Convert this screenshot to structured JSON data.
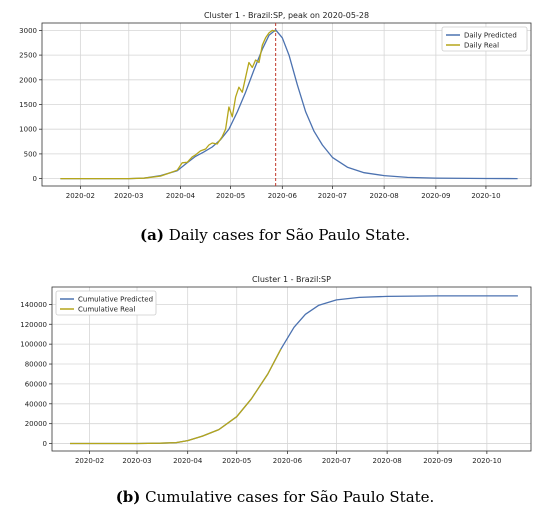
{
  "chart_data": [
    {
      "type": "line",
      "title": "Cluster 1 - Brazil:SP, peak on 2020-05-28",
      "caption_label": "(a)",
      "caption_text": " Daily cases for São Paulo State.",
      "xlabel": "",
      "ylabel": "",
      "x_ticks": [
        "2020-02",
        "2020-03",
        "2020-04",
        "2020-05",
        "2020-06",
        "2020-07",
        "2020-08",
        "2020-09",
        "2020-10"
      ],
      "x_range": [
        "2020-01-09",
        "2020-10-28"
      ],
      "ylim": [
        -150,
        3150
      ],
      "y_ticks": [
        0,
        500,
        1000,
        1500,
        2000,
        2500,
        3000
      ],
      "grid": true,
      "legend": "top-right",
      "peak_date": "2020-05-28",
      "series": [
        {
          "name": "Daily Predicted",
          "color": "#4c72b0",
          "points": [
            [
              "2020-01-20",
              0
            ],
            [
              "2020-03-01",
              0
            ],
            [
              "2020-03-10",
              10
            ],
            [
              "2020-03-20",
              60
            ],
            [
              "2020-03-30",
              160
            ],
            [
              "2020-04-05",
              320
            ],
            [
              "2020-04-10",
              450
            ],
            [
              "2020-04-15",
              540
            ],
            [
              "2020-04-20",
              640
            ],
            [
              "2020-04-25",
              790
            ],
            [
              "2020-04-30",
              1000
            ],
            [
              "2020-05-05",
              1350
            ],
            [
              "2020-05-10",
              1750
            ],
            [
              "2020-05-15",
              2200
            ],
            [
              "2020-05-20",
              2620
            ],
            [
              "2020-05-24",
              2900
            ],
            [
              "2020-05-28",
              3010
            ],
            [
              "2020-06-01",
              2850
            ],
            [
              "2020-06-05",
              2500
            ],
            [
              "2020-06-10",
              1900
            ],
            [
              "2020-06-15",
              1350
            ],
            [
              "2020-06-20",
              960
            ],
            [
              "2020-06-25",
              680
            ],
            [
              "2020-07-01",
              430
            ],
            [
              "2020-07-10",
              230
            ],
            [
              "2020-07-20",
              120
            ],
            [
              "2020-08-01",
              60
            ],
            [
              "2020-08-15",
              25
            ],
            [
              "2020-09-01",
              10
            ],
            [
              "2020-10-01",
              2
            ],
            [
              "2020-10-20",
              0
            ]
          ]
        },
        {
          "name": "Daily Real",
          "color": "#b5a61a",
          "points": [
            [
              "2020-01-20",
              0
            ],
            [
              "2020-03-01",
              0
            ],
            [
              "2020-03-10",
              8
            ],
            [
              "2020-03-20",
              50
            ],
            [
              "2020-03-25",
              110
            ],
            [
              "2020-03-30",
              170
            ],
            [
              "2020-04-02",
              320
            ],
            [
              "2020-04-05",
              330
            ],
            [
              "2020-04-08",
              440
            ],
            [
              "2020-04-10",
              480
            ],
            [
              "2020-04-13",
              560
            ],
            [
              "2020-04-16",
              600
            ],
            [
              "2020-04-18",
              680
            ],
            [
              "2020-04-20",
              720
            ],
            [
              "2020-04-23",
              700
            ],
            [
              "2020-04-26",
              850
            ],
            [
              "2020-04-28",
              1000
            ],
            [
              "2020-04-30",
              1450
            ],
            [
              "2020-05-02",
              1250
            ],
            [
              "2020-05-04",
              1650
            ],
            [
              "2020-05-06",
              1850
            ],
            [
              "2020-05-08",
              1750
            ],
            [
              "2020-05-10",
              2050
            ],
            [
              "2020-05-12",
              2350
            ],
            [
              "2020-05-14",
              2250
            ],
            [
              "2020-05-16",
              2400
            ],
            [
              "2020-05-18",
              2350
            ],
            [
              "2020-05-20",
              2700
            ],
            [
              "2020-05-22",
              2850
            ],
            [
              "2020-05-24",
              2950
            ],
            [
              "2020-05-26",
              3000
            ],
            [
              "2020-05-28",
              2980
            ]
          ]
        }
      ]
    },
    {
      "type": "line",
      "title": "Cluster 1 - Brazil:SP",
      "caption_label": "(b)",
      "caption_text": " Cumulative cases for São Paulo State.",
      "xlabel": "",
      "ylabel": "",
      "x_ticks": [
        "2020-02",
        "2020-03",
        "2020-04",
        "2020-05",
        "2020-06",
        "2020-07",
        "2020-08",
        "2020-09",
        "2020-10"
      ],
      "x_range": [
        "2020-01-09",
        "2020-10-28"
      ],
      "ylim": [
        -7500,
        157500
      ],
      "y_ticks": [
        0,
        20000,
        40000,
        60000,
        80000,
        100000,
        120000,
        140000
      ],
      "grid": true,
      "legend": "top-left",
      "series": [
        {
          "name": "Cumulative Predicted",
          "color": "#4c72b0",
          "points": [
            [
              "2020-01-20",
              0
            ],
            [
              "2020-03-01",
              0
            ],
            [
              "2020-03-15",
              300
            ],
            [
              "2020-03-25",
              1000
            ],
            [
              "2020-04-01",
              3000
            ],
            [
              "2020-04-10",
              7500
            ],
            [
              "2020-04-20",
              14000
            ],
            [
              "2020-05-01",
              27000
            ],
            [
              "2020-05-10",
              45000
            ],
            [
              "2020-05-20",
              70000
            ],
            [
              "2020-05-28",
              95000
            ],
            [
              "2020-06-05",
              117000
            ],
            [
              "2020-06-12",
              130000
            ],
            [
              "2020-06-20",
              139000
            ],
            [
              "2020-07-01",
              144500
            ],
            [
              "2020-07-15",
              147000
            ],
            [
              "2020-08-01",
              148000
            ],
            [
              "2020-09-01",
              148500
            ],
            [
              "2020-10-20",
              148500
            ]
          ]
        },
        {
          "name": "Cumulative Real",
          "color": "#b5a61a",
          "points": [
            [
              "2020-01-20",
              0
            ],
            [
              "2020-03-01",
              0
            ],
            [
              "2020-03-15",
              300
            ],
            [
              "2020-03-25",
              1000
            ],
            [
              "2020-04-01",
              3000
            ],
            [
              "2020-04-10",
              7500
            ],
            [
              "2020-04-20",
              14000
            ],
            [
              "2020-05-01",
              27000
            ],
            [
              "2020-05-10",
              45000
            ],
            [
              "2020-05-20",
              70000
            ],
            [
              "2020-05-28",
              95000
            ]
          ]
        }
      ]
    }
  ]
}
